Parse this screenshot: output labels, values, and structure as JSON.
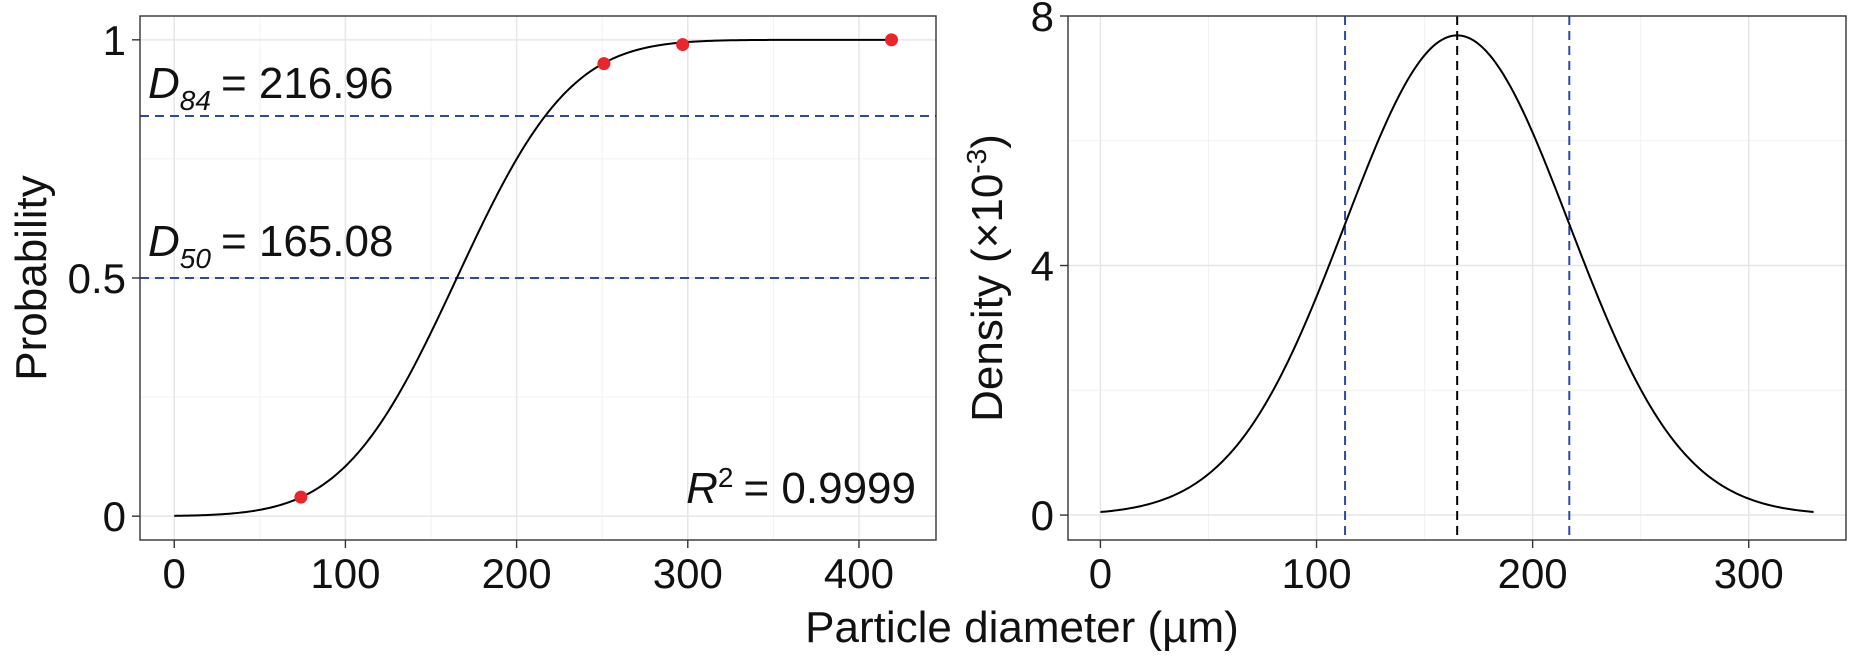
{
  "figure": {
    "shared_xlabel": "Particle diameter (µm)"
  },
  "chart_data": [
    {
      "type": "line",
      "ylabel": "Probability",
      "xlim": [
        -20,
        445
      ],
      "ylim": [
        -0.05,
        1.05
      ],
      "xticks": [
        0,
        100,
        200,
        300,
        400
      ],
      "yticks": [
        0,
        0.5,
        1
      ],
      "ytick_labels": [
        "0",
        "0.5",
        "1"
      ],
      "grid": true,
      "series": [
        {
          "kind": "cdf_curve",
          "mu": 165.08,
          "sigma": 51.88,
          "x_range": [
            0,
            420
          ]
        },
        {
          "kind": "points",
          "color": "#e8262b",
          "points": [
            {
              "x": 74,
              "y": 0.04
            },
            {
              "x": 251,
              "y": 0.95
            },
            {
              "x": 297,
              "y": 0.99
            },
            {
              "x": 419,
              "y": 1.0
            }
          ]
        }
      ],
      "hlines": [
        {
          "y": 0.84,
          "color": "#2f47a8",
          "style": "dashed"
        },
        {
          "y": 0.5,
          "color": "#2f47a8",
          "style": "dashed"
        }
      ],
      "annotations": {
        "d84": {
          "symbol": "D",
          "sub": "84",
          "text": "= 216.96"
        },
        "d50": {
          "symbol": "D",
          "sub": "50",
          "text": "= 165.08"
        },
        "r2": {
          "symbol": "R",
          "sup": "2",
          "text": "= 0.9999"
        }
      }
    },
    {
      "type": "line",
      "ylabel": "Density (×10",
      "ylabel_sup": "-3",
      "ylabel_close": ")",
      "xlim": [
        -15,
        345
      ],
      "ylim": [
        -0.4,
        8.0
      ],
      "xticks": [
        0,
        100,
        200,
        300
      ],
      "yticks": [
        0,
        4,
        8
      ],
      "grid": true,
      "series": [
        {
          "kind": "pdf_curve",
          "mu": 165.08,
          "sigma": 51.88,
          "x_range": [
            0,
            330
          ]
        }
      ],
      "vlines": [
        {
          "x": 113.2,
          "color": "#2f47a8",
          "style": "dashed"
        },
        {
          "x": 165.08,
          "color": "#000000",
          "style": "dashed"
        },
        {
          "x": 216.96,
          "color": "#2f47a8",
          "style": "dashed"
        }
      ]
    }
  ]
}
